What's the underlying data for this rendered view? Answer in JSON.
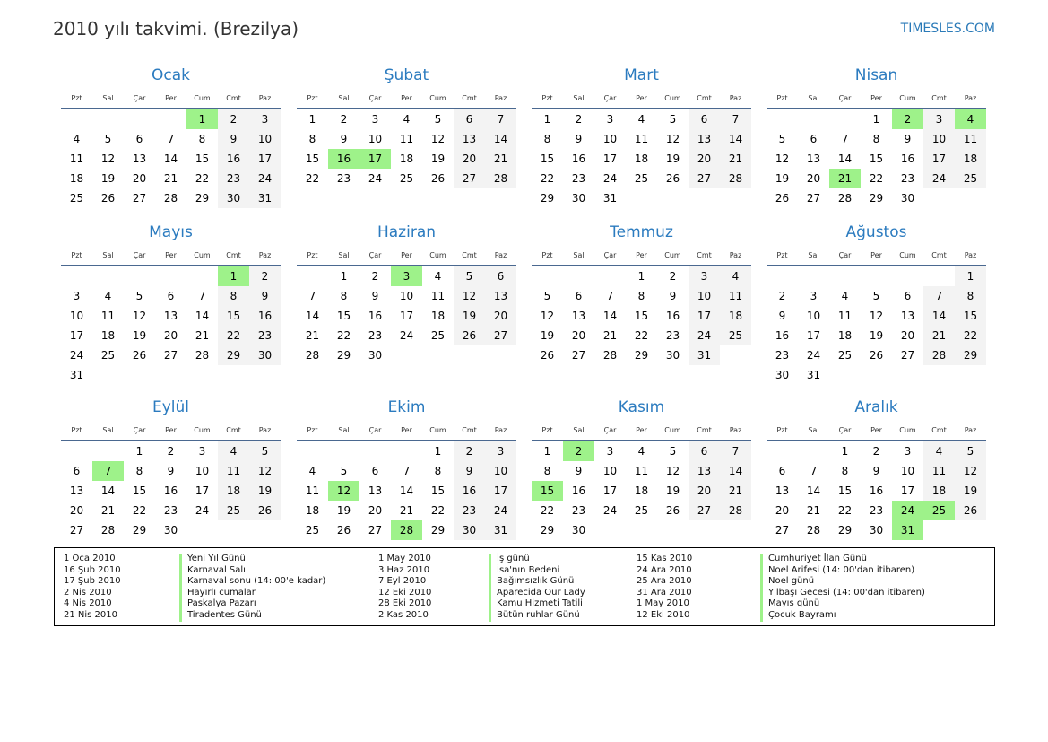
{
  "title": "2010 yılı takvimi. (Brezilya)",
  "site": "TIMESLES.COM",
  "year": 2010,
  "weekdays": [
    "Pzt",
    "Sal",
    "Çar",
    "Per",
    "Cum",
    "Cmt",
    "Paz"
  ],
  "months": [
    "Ocak",
    "Şubat",
    "Mart",
    "Nisan",
    "Mayıs",
    "Haziran",
    "Temmuz",
    "Ağustos",
    "Eylül",
    "Ekim",
    "Kasım",
    "Aralık"
  ],
  "colors": {
    "holiday": "#9ef28a",
    "weekend": "#f3f3f3",
    "accent": "#2b7bbf"
  },
  "highlighted_days": [
    [
      1,
      1
    ],
    [
      2,
      16
    ],
    [
      2,
      17
    ],
    [
      4,
      2
    ],
    [
      4,
      4
    ],
    [
      4,
      21
    ],
    [
      5,
      1
    ],
    [
      6,
      3
    ],
    [
      9,
      7
    ],
    [
      10,
      12
    ],
    [
      10,
      28
    ],
    [
      11,
      2
    ],
    [
      11,
      15
    ],
    [
      12,
      24
    ],
    [
      12,
      25
    ],
    [
      12,
      31
    ]
  ],
  "holidays": [
    {
      "date": "1 Oca 2010",
      "name": "Yeni Yıl Günü"
    },
    {
      "date": "16 Şub 2010",
      "name": "Karnaval Salı"
    },
    {
      "date": "17 Şub 2010",
      "name": "Karnaval sonu (14: 00'e kadar)"
    },
    {
      "date": "2 Nis 2010",
      "name": "Hayırlı cumalar"
    },
    {
      "date": "4 Nis 2010",
      "name": "Paskalya Pazarı"
    },
    {
      "date": "21 Nis 2010",
      "name": "Tiradentes Günü"
    },
    {
      "date": "1 May 2010",
      "name": "İş günü"
    },
    {
      "date": "3 Haz 2010",
      "name": "İsa'nın Bedeni"
    },
    {
      "date": "7 Eyl 2010",
      "name": "Bağımsızlık Günü"
    },
    {
      "date": "12 Eki 2010",
      "name": "Aparecida Our Lady"
    },
    {
      "date": "28 Eki 2010",
      "name": "Kamu Hizmeti Tatili"
    },
    {
      "date": "2 Kas 2010",
      "name": "Bütün ruhlar Günü"
    },
    {
      "date": "15 Kas 2010",
      "name": "Cumhuriyet İlan Günü"
    },
    {
      "date": "24 Ara 2010",
      "name": "Noel Arifesi (14: 00'dan itibaren)"
    },
    {
      "date": "25 Ara 2010",
      "name": "Noel günü"
    },
    {
      "date": "31 Ara 2010",
      "name": "Yılbaşı Gecesi (14: 00'dan itibaren)"
    },
    {
      "date": "1 May 2010",
      "name": "Mayıs günü"
    },
    {
      "date": "12 Eki 2010",
      "name": "Çocuk Bayramı"
    }
  ]
}
